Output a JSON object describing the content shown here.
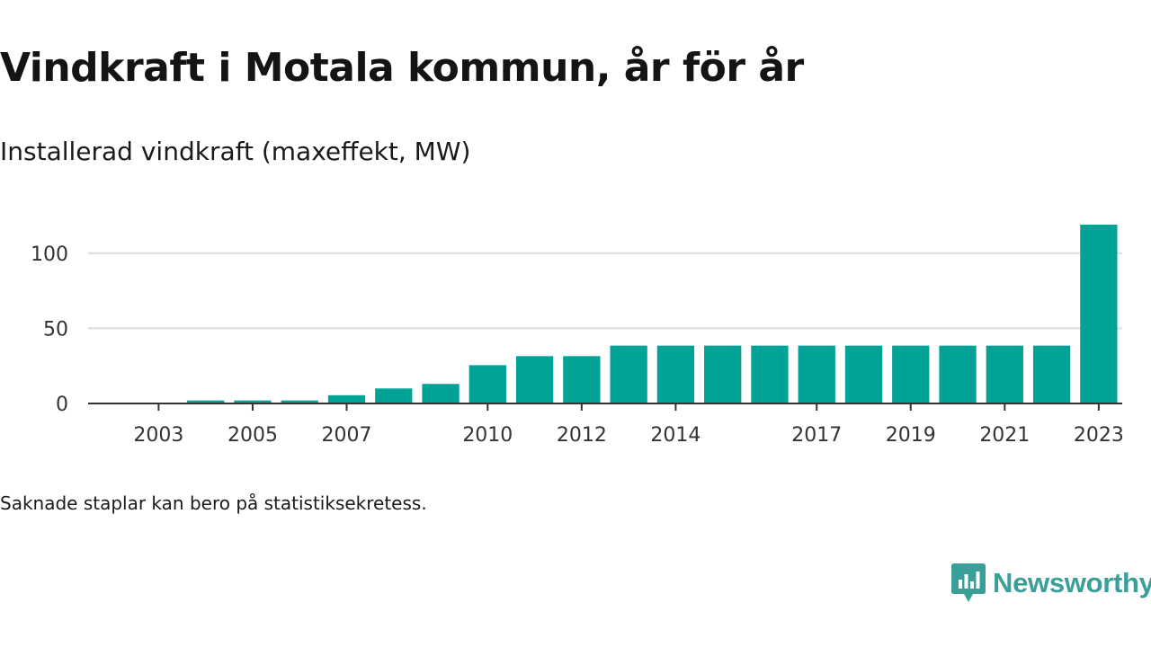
{
  "title": "Vindkraft i Motala kommun, år för år",
  "subtitle": "Installerad vindkraft (maxeffekt, MW)",
  "note": "Saknade staplar kan bero på statistiksekretess.",
  "brand": {
    "name": "Newsworthy",
    "icon": "newsworthy-logo-icon",
    "color": "#3a9e99"
  },
  "colors": {
    "bar": "#00a396",
    "axis": "#333333",
    "grid": "#dddddd"
  },
  "chart_data": {
    "type": "bar",
    "categories": [
      "2002",
      "2003",
      "2004",
      "2005",
      "2006",
      "2007",
      "2008",
      "2009",
      "2010",
      "2011",
      "2012",
      "2013",
      "2014",
      "2015",
      "2016",
      "2017",
      "2018",
      "2019",
      "2020",
      "2021",
      "2022",
      "2023"
    ],
    "values": [
      0,
      0,
      2,
      2,
      2,
      5.5,
      10,
      13,
      25.5,
      31.5,
      31.5,
      38.5,
      38.5,
      38.5,
      38.5,
      38.5,
      38.5,
      38.5,
      38.5,
      38.5,
      38.5,
      119
    ],
    "xticks": [
      "2003",
      "2005",
      "2007",
      "2010",
      "2012",
      "2014",
      "2017",
      "2019",
      "2021",
      "2023"
    ],
    "yticks": [
      0,
      50,
      100
    ],
    "ylim": [
      0,
      125
    ],
    "grid": true,
    "legend": "none"
  }
}
